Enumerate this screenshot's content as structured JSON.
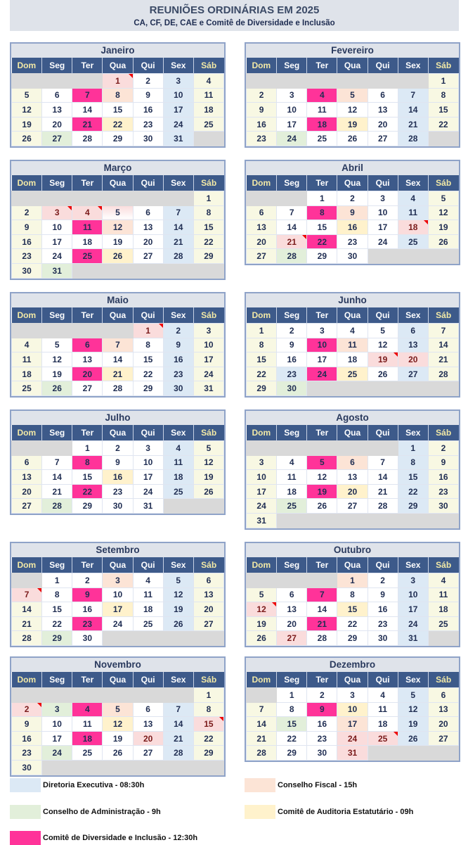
{
  "header": {
    "title": "REUNIÕES ORDINÁRIAS EM 2025",
    "subtitle": "CA, CF, DE, CAE e Comitê de Diversidade e Inclusão"
  },
  "weekdays": [
    "Dom",
    "Seg",
    "Ter",
    "Qua",
    "Qui",
    "Sex",
    "Sáb"
  ],
  "colors": {
    "diretoria_executiva": "#dce9f5",
    "conselho_fiscal": "#fce4d6",
    "conselho_administracao": "#e2efda",
    "comite_auditoria": "#fff2cc",
    "comite_diversidade": "#ff3399",
    "holiday": "#fadcdc",
    "weekend": "#f8f8e3",
    "header": "#3d5a8a"
  },
  "cell_legend": {
    "f": "Diretoria Executiva",
    "c": "Conselho Fiscal",
    "a": "Conselho de Administração",
    "u": "Comitê de Auditoria Estatutário",
    "d": "Comitê de Diversidade e Inclusão",
    "h": "holiday with note marker",
    "p": "holiday",
    "w": "weekend",
    "n": "regular day"
  },
  "months": [
    {
      "name": "Janeiro",
      "first_weekday": 3,
      "days": 31,
      "marks": {
        "1": "h",
        "7": "d",
        "8": "c",
        "21": "d",
        "22": "u",
        "27": "a"
      }
    },
    {
      "name": "Fevereiro",
      "first_weekday": 6,
      "days": 28,
      "marks": {
        "4": "d",
        "5": "c",
        "18": "d",
        "19": "u",
        "24": "a"
      }
    },
    {
      "name": "Março",
      "first_weekday": 6,
      "days": 31,
      "marks": {
        "3": "h",
        "4": "h",
        "5": "g",
        "11": "d",
        "12": "c",
        "25": "d",
        "26": "u",
        "31": "a"
      }
    },
    {
      "name": "Abril",
      "first_weekday": 2,
      "days": 30,
      "marks": {
        "8": "d",
        "9": "c",
        "16": "u",
        "18": "h",
        "21": "h",
        "22": "d",
        "28": "a"
      }
    },
    {
      "name": "Maio",
      "first_weekday": 4,
      "days": 31,
      "marks": {
        "1": "h",
        "6": "d",
        "7": "c",
        "20": "d",
        "21": "u",
        "26": "a"
      }
    },
    {
      "name": "Junho",
      "first_weekday": 0,
      "days": 30,
      "marks": {
        "10": "d",
        "11": "c",
        "19": "h",
        "20": "p",
        "23": "f",
        "24": "d",
        "25": "u",
        "30": "a"
      }
    },
    {
      "name": "Julho",
      "first_weekday": 2,
      "days": 31,
      "marks": {
        "8": "d",
        "16": "u",
        "22": "d",
        "28": "a"
      }
    },
    {
      "name": "Agosto",
      "first_weekday": 5,
      "days": 31,
      "marks": {
        "5": "d",
        "6": "c",
        "19": "d",
        "20": "u",
        "25": "a"
      }
    },
    {
      "name": "Setembro",
      "first_weekday": 1,
      "days": 30,
      "marks": {
        "3": "c",
        "7": "h",
        "9": "d",
        "17": "u",
        "23": "d",
        "29": "a"
      }
    },
    {
      "name": "Outubro",
      "first_weekday": 3,
      "days": 31,
      "marks": {
        "1": "c",
        "7": "d",
        "12": "h",
        "15": "u",
        "21": "d",
        "27": "p"
      }
    },
    {
      "name": "Novembro",
      "first_weekday": 6,
      "days": 30,
      "marks": {
        "2": "h",
        "3": "a",
        "4": "d",
        "5": "c",
        "12": "u",
        "15": "h",
        "18": "d",
        "20": "p",
        "24": "a"
      }
    },
    {
      "name": "Dezembro",
      "first_weekday": 1,
      "days": 31,
      "marks": {
        "9": "d",
        "10": "u",
        "15": "a",
        "17": "c",
        "24": "p",
        "25": "h",
        "31": "p"
      }
    }
  ],
  "legend": [
    {
      "label": "Diretoria Executiva - 08:30h",
      "color": "#dce9f5"
    },
    {
      "label": "Conselho Fiscal - 15h",
      "color": "#fce4d6"
    },
    {
      "label": "Conselho de Administração - 9h",
      "color": "#e2efda"
    },
    {
      "label": "Comitê de Auditoria Estatutário - 09h",
      "color": "#fff2cc"
    },
    {
      "label": "Comitê de Diversidade e Inclusão - 12:30h",
      "color": "#ff3399"
    }
  ]
}
